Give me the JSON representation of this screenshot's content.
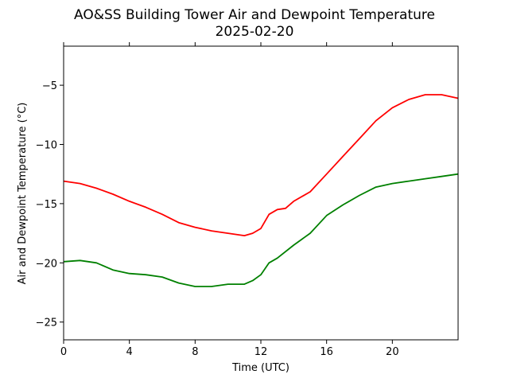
{
  "chart_data": {
    "type": "line",
    "title": "AO&SS Building Tower Air and Dewpoint Temperature",
    "subtitle": "2025-02-20",
    "xlabel": "Time (UTC)",
    "ylabel": "Air and Dewpoint Temperature (°C)",
    "xlim": [
      0,
      24
    ],
    "ylim": [
      -26.5,
      -1.7
    ],
    "xticks": [
      0,
      4,
      8,
      12,
      16,
      20
    ],
    "yticks": [
      -25,
      -20,
      -15,
      -10,
      -5
    ],
    "grid": false,
    "series": [
      {
        "color": "#ff0000",
        "x": [
          0,
          1,
          2,
          3,
          4,
          5,
          6,
          7,
          8,
          9,
          10,
          10.5,
          11,
          11.5,
          12,
          12.5,
          13,
          13.5,
          14,
          15,
          16,
          17,
          18,
          19,
          20,
          21,
          22,
          23,
          24
        ],
        "y": [
          -13.1,
          -13.3,
          -13.7,
          -14.2,
          -14.8,
          -15.3,
          -15.9,
          -16.6,
          -17.0,
          -17.3,
          -17.5,
          -17.6,
          -17.7,
          -17.5,
          -17.1,
          -15.9,
          -15.5,
          -15.4,
          -14.8,
          -14.0,
          -12.5,
          -11.0,
          -9.5,
          -8.0,
          -6.9,
          -6.2,
          -5.8,
          -5.8,
          -6.1
        ]
      },
      {
        "color": "#008000",
        "x": [
          0,
          1,
          2,
          3,
          4,
          5,
          6,
          7,
          8,
          9,
          10,
          11,
          11.5,
          12,
          12.5,
          13,
          14,
          15,
          16,
          17,
          18,
          19,
          20,
          21,
          22,
          23,
          24
        ],
        "y": [
          -19.9,
          -19.8,
          -20.0,
          -20.6,
          -20.9,
          -21.0,
          -21.2,
          -21.7,
          -22.0,
          -22.0,
          -21.8,
          -21.8,
          -21.5,
          -21.0,
          -20.0,
          -19.6,
          -18.5,
          -17.5,
          -16.0,
          -15.1,
          -14.3,
          -13.6,
          -13.3,
          -13.1,
          -12.9,
          -12.7,
          -12.5
        ]
      }
    ]
  }
}
